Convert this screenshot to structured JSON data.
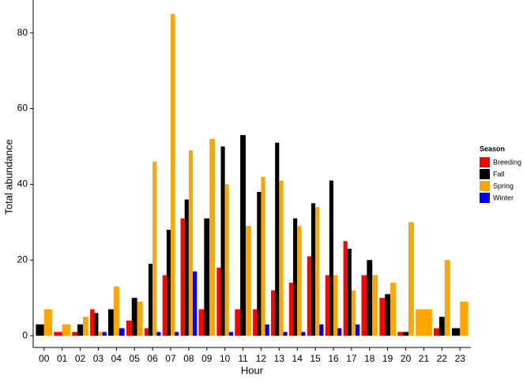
{
  "chart_data": {
    "type": "bar",
    "x_label": "Hour",
    "y_label": "Total abundance",
    "categories": [
      "00",
      "01",
      "02",
      "03",
      "04",
      "05",
      "06",
      "07",
      "08",
      "09",
      "10",
      "11",
      "12",
      "13",
      "14",
      "15",
      "16",
      "17",
      "18",
      "19",
      "20",
      "21",
      "22",
      "23"
    ],
    "series": [
      {
        "name": "Breeding",
        "color": "#ff0000",
        "values": [
          null,
          1,
          1,
          7,
          null,
          4,
          2,
          16,
          31,
          7,
          18,
          7,
          7,
          12,
          14,
          21,
          16,
          25,
          16,
          10,
          1,
          null,
          2,
          null
        ]
      },
      {
        "name": "Fall",
        "color": "#000000",
        "values": [
          3,
          null,
          3,
          6,
          7,
          10,
          19,
          28,
          36,
          31,
          50,
          53,
          38,
          51,
          31,
          35,
          41,
          23,
          20,
          11,
          1,
          null,
          5,
          2
        ]
      },
      {
        "name": "Spring",
        "color": "#ffa500",
        "values": [
          7,
          3,
          5,
          1,
          13,
          9,
          46,
          85,
          49,
          52,
          40,
          29,
          42,
          41,
          29,
          34,
          16,
          12,
          16,
          14,
          30,
          7,
          20,
          9
        ]
      },
      {
        "name": "Winter",
        "color": "#0000ff",
        "values": [
          null,
          null,
          null,
          1,
          2,
          null,
          1,
          1,
          17,
          null,
          1,
          null,
          3,
          1,
          1,
          3,
          2,
          3,
          null,
          null,
          null,
          null,
          null,
          null
        ]
      }
    ],
    "legend_title": "Season",
    "legend_position": "right",
    "ylim": [
      -3.1,
      88.7
    ],
    "yticks": [
      0,
      20,
      40,
      60,
      80
    ],
    "grid": false
  }
}
